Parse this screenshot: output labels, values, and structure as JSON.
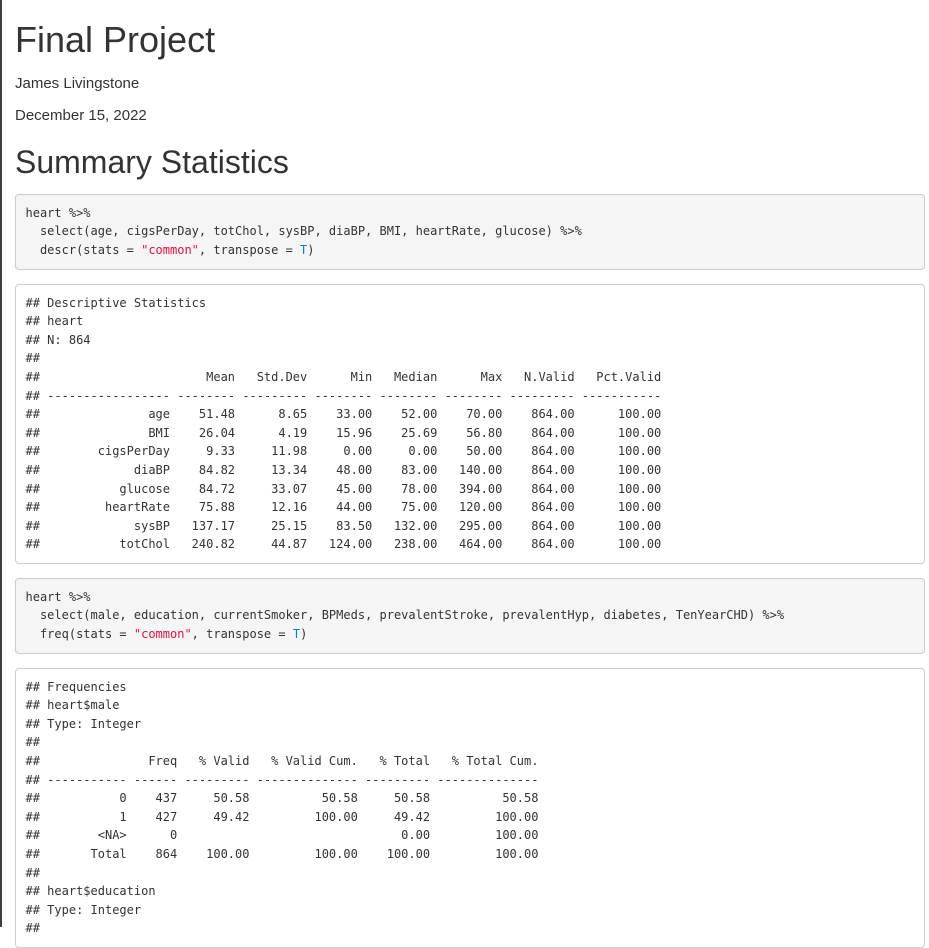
{
  "header": {
    "title": "Final Project",
    "author": "James Livingstone",
    "date": "December 15, 2022"
  },
  "section": {
    "heading": "Summary Statistics"
  },
  "colors": {
    "code_background": "#f5f5f5",
    "block_border": "#cccccc",
    "string_token": "#dd1144",
    "literal_token": "#0086b3",
    "text": "#333333",
    "window_edge": "#3b3f44"
  },
  "code_blocks": [
    {
      "name": "descr-code",
      "lines": [
        [
          {
            "t": "heart %>%",
            "c": "pl"
          }
        ],
        [
          {
            "t": "  select(age, cigsPerDay, totChol, sysBP, diaBP, BMI, heartRate, glucose) %>%",
            "c": "pl"
          }
        ],
        [
          {
            "t": "  descr(stats = ",
            "c": "pl"
          },
          {
            "t": "\"common\"",
            "c": "st"
          },
          {
            "t": ", transpose = ",
            "c": "pl"
          },
          {
            "t": "T",
            "c": "li"
          },
          {
            "t": ")",
            "c": "pl"
          }
        ]
      ]
    },
    {
      "name": "freq-code",
      "lines": [
        [
          {
            "t": "heart %>%",
            "c": "pl"
          }
        ],
        [
          {
            "t": "  select(male, education, currentSmoker, BPMeds, prevalentStroke, prevalentHyp, diabetes, TenYearCHD) %>%",
            "c": "pl"
          }
        ],
        [
          {
            "t": "  freq(stats = ",
            "c": "pl"
          },
          {
            "t": "\"common\"",
            "c": "st"
          },
          {
            "t": ", transpose = ",
            "c": "pl"
          },
          {
            "t": "T",
            "c": "li"
          },
          {
            "t": ")",
            "c": "pl"
          }
        ]
      ]
    }
  ],
  "output_blocks": [
    {
      "name": "descr-output",
      "lines": [
        "## Descriptive Statistics",
        "## heart",
        "## N: 864",
        "## ",
        "##                       Mean   Std.Dev      Min   Median      Max   N.Valid   Pct.Valid",
        "## ----------------- -------- --------- -------- -------- -------- --------- -----------",
        "##               age    51.48      8.65    33.00    52.00    70.00    864.00      100.00",
        "##               BMI    26.04      4.19    15.96    25.69    56.80    864.00      100.00",
        "##        cigsPerDay     9.33     11.98     0.00     0.00    50.00    864.00      100.00",
        "##             diaBP    84.82     13.34    48.00    83.00   140.00    864.00      100.00",
        "##           glucose    84.72     33.07    45.00    78.00   394.00    864.00      100.00",
        "##         heartRate    75.88     12.16    44.00    75.00   120.00    864.00      100.00",
        "##             sysBP   137.17     25.15    83.50   132.00   295.00    864.00      100.00",
        "##           totChol   240.82     44.87   124.00   238.00   464.00    864.00      100.00"
      ]
    },
    {
      "name": "freq-output",
      "lines": [
        "## Frequencies",
        "## heart$male",
        "## Type: Integer",
        "## ",
        "##               Freq   % Valid   % Valid Cum.   % Total   % Total Cum.",
        "## ----------- ------ --------- -------------- --------- --------------",
        "##           0    437     50.58          50.58     50.58          50.58",
        "##           1    427     49.42         100.00     49.42         100.00",
        "##        <NA>      0                               0.00         100.00",
        "##       Total    864    100.00         100.00    100.00         100.00",
        "## ",
        "## heart$education",
        "## Type: Integer",
        "## "
      ]
    }
  ]
}
